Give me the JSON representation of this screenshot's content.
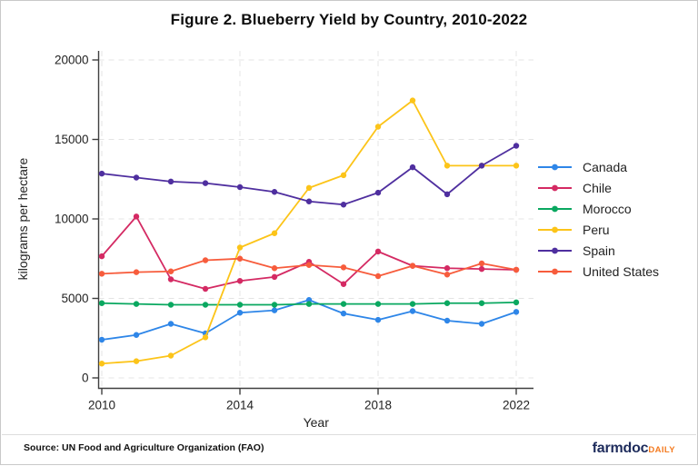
{
  "source_note": "Source: UN Food and Agriculture Organization (FAO)",
  "branding": {
    "name": "farmdoc",
    "suffix": "DAILY"
  },
  "chart_data": {
    "type": "line",
    "title": "Figure 2. Blueberry Yield by Country, 2010-2022",
    "xlabel": "Year",
    "ylabel": "kilograms per hectare",
    "x": [
      2010,
      2011,
      2012,
      2013,
      2014,
      2015,
      2016,
      2017,
      2018,
      2019,
      2020,
      2021,
      2022
    ],
    "x_ticks": [
      2010,
      2014,
      2018,
      2022
    ],
    "y_ticks": [
      0,
      5000,
      10000,
      15000,
      20000
    ],
    "ylim": [
      0,
      20000
    ],
    "xlim": [
      2010,
      2022
    ],
    "grid": "dashed-both-axes",
    "legend_position": "right",
    "marker": "filled-circle",
    "series": [
      {
        "name": "Canada",
        "color": "#2e86e8",
        "values": [
          2400,
          2700,
          3400,
          2800,
          4100,
          4250,
          4900,
          4050,
          3650,
          4200,
          3600,
          3400,
          4150
        ]
      },
      {
        "name": "Chile",
        "color": "#d42a63",
        "values": [
          7650,
          10150,
          6200,
          5600,
          6100,
          6350,
          7300,
          5900,
          7950,
          7050,
          6900,
          6850,
          6800
        ]
      },
      {
        "name": "Morocco",
        "color": "#0aa860",
        "values": [
          4700,
          4650,
          4600,
          4600,
          4600,
          4600,
          4650,
          4650,
          4650,
          4650,
          4700,
          4700,
          4750
        ]
      },
      {
        "name": "Peru",
        "color": "#fcc419",
        "values": [
          900,
          1050,
          1400,
          2550,
          8200,
          9100,
          11950,
          12750,
          15800,
          17450,
          13350,
          13350,
          13350
        ]
      },
      {
        "name": "Spain",
        "color": "#4f2f9f",
        "values": [
          12850,
          12600,
          12350,
          12250,
          12000,
          11700,
          11100,
          10900,
          11650,
          13250,
          11550,
          13350,
          14600
        ]
      },
      {
        "name": "United States",
        "color": "#f75c3c",
        "values": [
          6550,
          6650,
          6700,
          7400,
          7500,
          6900,
          7100,
          6950,
          6400,
          7050,
          6500,
          7200,
          6800
        ]
      }
    ]
  }
}
